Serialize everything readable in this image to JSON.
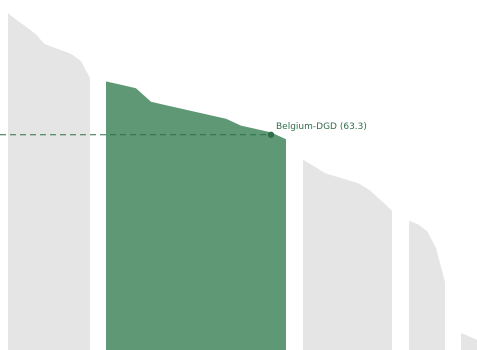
{
  "chart_data": {
    "type": "area",
    "title": "",
    "xlabel": "",
    "ylabel": "",
    "ylim": [
      0,
      100
    ],
    "grid": false,
    "legend": "none",
    "colors": {
      "background_area": "#e5e5e5",
      "highlight_area": "#5f9874",
      "reference": "#2f6e4a"
    },
    "reference": {
      "label": "Belgium-DGD (63.3)",
      "value": 63.3
    },
    "series": [
      {
        "values": [
          99,
          97,
          95,
          93,
          90,
          89,
          88,
          87,
          85,
          80
        ]
      },
      {
        "values": [
          79,
          78,
          77,
          73,
          72,
          71,
          70,
          69,
          68,
          66,
          65,
          64,
          62
        ]
      },
      {
        "values": [
          56,
          54,
          52,
          51,
          50,
          49,
          47,
          44,
          41
        ]
      },
      {
        "values": [
          38,
          37,
          35,
          30,
          20
        ]
      },
      {
        "values": [
          5,
          3
        ]
      }
    ],
    "highlight_series": 1
  },
  "annotation": {
    "label": "Belgium-DGD (63.3)"
  }
}
